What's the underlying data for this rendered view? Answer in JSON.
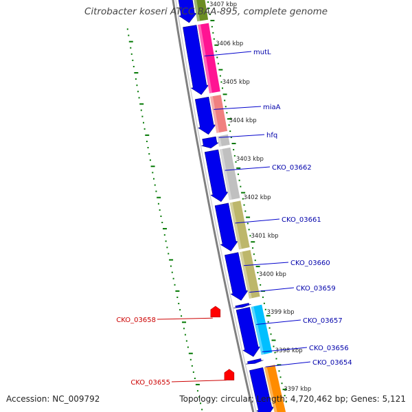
{
  "title": "Citrobacter koseri ATCC BAA-895, complete genome",
  "footer": {
    "accession": "Accession: NC_009792",
    "summary": "Topology: circular; Length: 4,720,462 bp; Genes: 5,121"
  },
  "colors": {
    "forward_gene": "#0000ee",
    "reverse_gene": "#ff0000",
    "backbone": "#808080",
    "gc_ticks": "#007700",
    "forward_label": "#0000aa",
    "reverse_label": "#cc0000"
  },
  "scale_labels": [
    "3407 kbp",
    "3406 kbp",
    "3405 kbp",
    "3404 kbp",
    "3403 kbp",
    "3402 kbp",
    "3401 kbp",
    "3400 kbp",
    "3399 kbp",
    "3398 kbp",
    "3397 kbp"
  ],
  "forward_genes": [
    {
      "label": "mutL",
      "color": "#ff1493"
    },
    {
      "label": "miaA",
      "color": "#f08080"
    },
    {
      "label": "hfq",
      "color": "#c0c0c0"
    },
    {
      "label": "CKO_03662",
      "color": "#c0c0c0"
    },
    {
      "label": "CKO_03661",
      "color": "#bdb76b"
    },
    {
      "label": "CKO_03660",
      "color": "#bdb76b"
    },
    {
      "label": "CKO_03659",
      "color": "#ffffff"
    },
    {
      "label": "CKO_03657",
      "color": "#00bfff"
    },
    {
      "label": "CKO_03656",
      "color": "#ffffff"
    },
    {
      "label": "CKO_03654",
      "color": "#ff8c00"
    }
  ],
  "reverse_genes": [
    {
      "label": "CKO_03658"
    },
    {
      "label": "CKO_03655"
    }
  ]
}
